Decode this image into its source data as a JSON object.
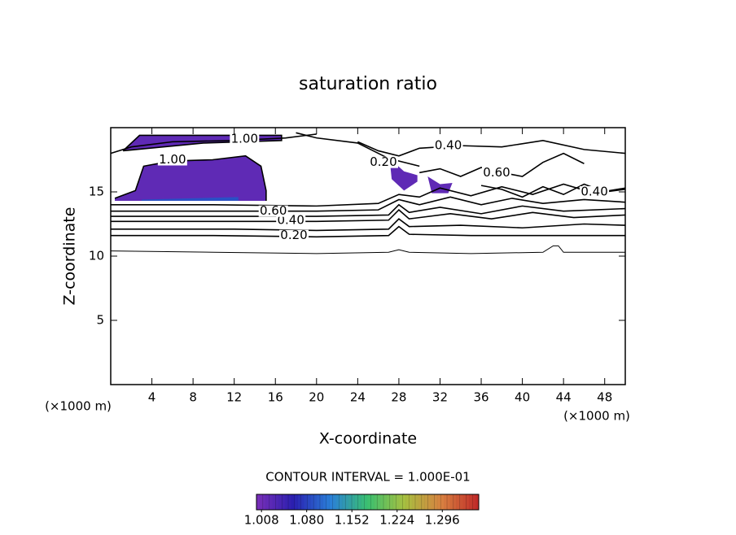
{
  "chart_data": {
    "type": "contour",
    "title": "saturation ratio",
    "x_label": "X-coordinate",
    "y_label": "Z-coordinate",
    "x_unit": "(×1000 m)",
    "y_unit": "(×1000 m)",
    "xlim": [
      0,
      50
    ],
    "ylim": [
      0,
      20
    ],
    "xticks": [
      4,
      8,
      12,
      16,
      20,
      24,
      28,
      32,
      36,
      40,
      44,
      48
    ],
    "yticks": [
      5,
      10,
      15
    ],
    "contour_interval": "CONTOUR INTERVAL = 1.000E-01",
    "line_color": "#000000",
    "contours": [
      {
        "level": 0.1,
        "x": [
          0,
          10,
          20,
          27,
          28,
          29,
          35,
          42,
          43,
          43.5,
          44,
          50
        ],
        "y": [
          10.4,
          10.3,
          10.2,
          10.3,
          10.5,
          10.3,
          10.2,
          10.3,
          10.8,
          10.8,
          10.3,
          10.3
        ]
      },
      {
        "level": 0.2,
        "label": "0.20",
        "label_x": 17.8,
        "label_y": 11.6,
        "x": [
          0,
          10,
          20,
          27,
          28,
          29,
          35,
          40,
          45,
          50
        ],
        "y": [
          11.6,
          11.6,
          11.5,
          11.6,
          12.3,
          11.7,
          11.6,
          11.6,
          11.6,
          11.6
        ]
      },
      {
        "level": 0.3,
        "x": [
          0,
          12,
          20,
          27,
          28,
          29,
          34,
          40,
          46,
          50
        ],
        "y": [
          12.1,
          12.1,
          12.0,
          12.1,
          12.9,
          12.3,
          12.4,
          12.2,
          12.5,
          12.4
        ]
      },
      {
        "level": 0.4,
        "label": "0.40",
        "label_x": 17.5,
        "label_y": 12.8,
        "x": [
          0,
          12,
          20,
          27,
          28,
          29,
          33,
          37,
          41,
          45,
          50
        ],
        "y": [
          12.7,
          12.7,
          12.7,
          12.8,
          13.6,
          12.9,
          13.3,
          12.9,
          13.4,
          13.0,
          13.2
        ]
      },
      {
        "level": 0.5,
        "x": [
          0,
          12,
          20,
          27,
          28,
          29,
          32,
          36,
          40,
          44,
          50
        ],
        "y": [
          13.1,
          13.1,
          13.1,
          13.2,
          14.0,
          13.4,
          13.8,
          13.3,
          13.9,
          13.5,
          13.7
        ]
      },
      {
        "level": 0.6,
        "label": "0.60",
        "label_x": 15.8,
        "label_y": 13.5,
        "x": [
          0,
          12,
          20,
          26,
          28,
          30,
          33,
          36,
          39,
          42,
          46,
          50
        ],
        "y": [
          13.5,
          13.5,
          13.5,
          13.6,
          14.4,
          14.0,
          14.6,
          14.0,
          14.5,
          14.1,
          14.4,
          14.2
        ]
      },
      {
        "level": 0.8,
        "x": [
          0,
          10,
          20,
          26,
          28,
          30,
          32,
          35,
          38,
          41,
          44,
          47,
          50
        ],
        "y": [
          14.0,
          14.0,
          13.9,
          14.1,
          14.8,
          14.6,
          15.3,
          14.7,
          15.4,
          14.8,
          15.6,
          14.9,
          15.3
        ]
      },
      {
        "level": 0.4,
        "label": "0.40",
        "label_x": 32.8,
        "label_y": 18.6,
        "x": [
          24,
          26,
          28,
          30,
          34,
          38,
          42,
          46,
          50
        ],
        "y": [
          18.9,
          18.2,
          17.8,
          18.4,
          18.6,
          18.5,
          19.0,
          18.3,
          18.0
        ]
      },
      {
        "level": 0.4,
        "label": "0.40",
        "label_x": 47,
        "label_y": 15.0,
        "x": [
          36,
          38,
          40,
          42,
          44,
          46,
          48,
          50
        ],
        "y": [
          15.5,
          15.2,
          14.6,
          15.4,
          14.8,
          15.6,
          15.0,
          15.2
        ]
      },
      {
        "level": 1.0,
        "label": "1.00",
        "label_x": 6,
        "label_y": 17.5,
        "x": [
          0.4,
          2.4,
          3.2,
          5.9,
          9.9,
          13.1,
          14.6,
          15.1,
          15.1
        ],
        "y": [
          14.5,
          15.1,
          17.0,
          17.4,
          17.5,
          17.8,
          17.0,
          15.1,
          14.3
        ]
      },
      {
        "level": 1.0,
        "label": "1.00",
        "label_x": 13,
        "label_y": 19.1,
        "x": [
          1.2,
          2.8,
          16.6,
          16.6,
          9,
          1.2
        ],
        "y": [
          18.2,
          19.4,
          19.4,
          19.0,
          18.8,
          18.2
        ]
      },
      {
        "level": 0.8,
        "x": [
          0,
          2,
          6,
          12,
          17,
          20
        ],
        "y": [
          18.0,
          18.5,
          18.9,
          19.0,
          19.2,
          19.5
        ]
      },
      {
        "level": 0.2,
        "label": "0.20",
        "label_x": 26.5,
        "label_y": 17.3,
        "x": [
          18,
          20,
          24,
          27,
          30
        ],
        "y": [
          19.6,
          19.2,
          18.8,
          17.6,
          17.0
        ]
      },
      {
        "level": 0.6,
        "label": "0.60",
        "label_x": 37.5,
        "label_y": 16.5,
        "x": [
          30,
          32,
          34,
          36,
          38,
          40,
          42,
          44,
          46
        ],
        "y": [
          16.5,
          16.8,
          16.2,
          16.9,
          16.5,
          16.2,
          17.3,
          18.0,
          17.2
        ]
      }
    ],
    "regions": [
      {
        "value": 1.02,
        "x": [
          0.4,
          2.4,
          3.2,
          5.9,
          9.9,
          13.1,
          14.6,
          15.1,
          15.1,
          0.4
        ],
        "y": [
          14.5,
          15.1,
          17.0,
          17.4,
          17.5,
          17.8,
          17.0,
          15.1,
          14.3,
          14.3
        ]
      },
      {
        "value": 1.09,
        "x": [
          3,
          12.4,
          12.4,
          3
        ],
        "y": [
          14.3,
          14.3,
          14.6,
          14.4
        ]
      },
      {
        "value": 1.02,
        "x": [
          1.2,
          2.8,
          16.6,
          16.6,
          9,
          1.2
        ],
        "y": [
          18.2,
          19.4,
          19.4,
          19.0,
          18.8,
          18.2
        ]
      },
      {
        "value": 1.02,
        "x": [
          27.1,
          28.5,
          29.8,
          29.8,
          28.5,
          27.3
        ],
        "y": [
          17.6,
          16.6,
          16.3,
          15.8,
          15.1,
          16.0
        ]
      },
      {
        "value": 1.02,
        "x": [
          30.8,
          32.0,
          33.2,
          32.8,
          31.2
        ],
        "y": [
          16.2,
          15.6,
          15.7,
          14.9,
          14.9
        ]
      }
    ],
    "clim": [
      1.0,
      1.354
    ],
    "colormap": [
      "#7a2fb8",
      "#2a1fb0",
      "#2a7fd8",
      "#3ac070",
      "#a8c040",
      "#d88040",
      "#c02828"
    ],
    "colorbar_ticks": [
      1.008,
      {
        "value": 1.08,
        "label": "1.080"
      },
      1.152,
      1.224,
      1.296
    ]
  }
}
